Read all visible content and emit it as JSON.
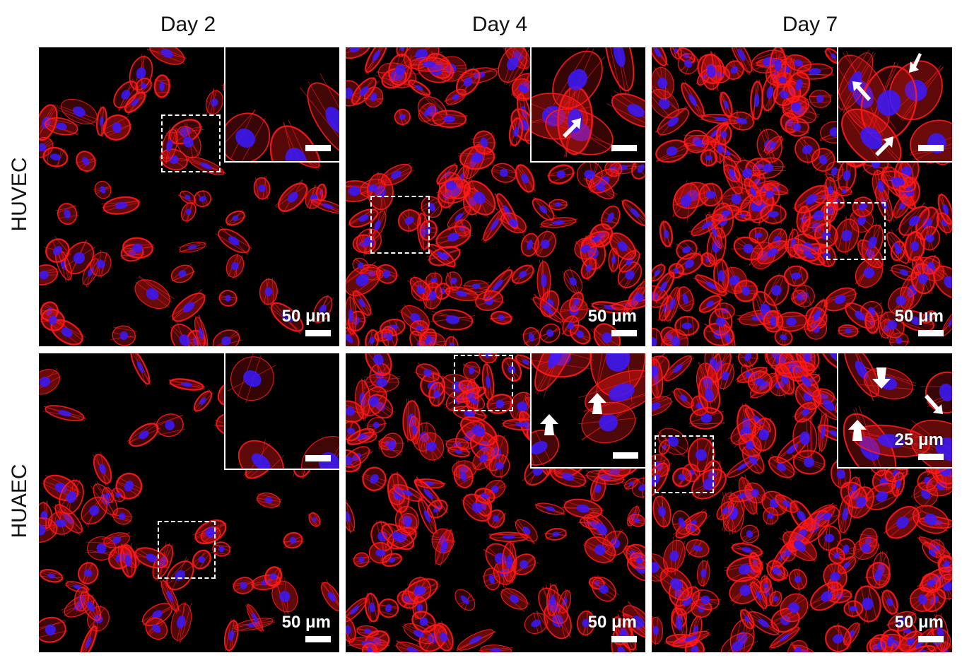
{
  "columns": [
    {
      "label": "Day 2"
    },
    {
      "label": "Day 4"
    },
    {
      "label": "Day 7"
    }
  ],
  "rows": [
    {
      "label": "HUVEC"
    },
    {
      "label": "HUAEC"
    }
  ],
  "scale_bars": {
    "main": "50 μm",
    "inset": "25 μm"
  },
  "colors": {
    "actin": "#ff1a1a",
    "nuclei": "#3a1aff",
    "background": "#000000",
    "annotation": "#ffffff"
  },
  "panels": [
    {
      "row": "HUVEC",
      "column": "Day 2",
      "inset_arrows": 0,
      "density": 0.35
    },
    {
      "row": "HUVEC",
      "column": "Day 4",
      "inset_arrows": 1,
      "density": 0.75
    },
    {
      "row": "HUVEC",
      "column": "Day 7",
      "inset_arrows": 3,
      "density": 1.0
    },
    {
      "row": "HUAEC",
      "column": "Day 2",
      "inset_arrows": 0,
      "density": 0.35
    },
    {
      "row": "HUAEC",
      "column": "Day 4",
      "inset_arrows": 2,
      "density": 0.8
    },
    {
      "row": "HUAEC",
      "column": "Day 7",
      "inset_arrows": 3,
      "density": 1.0
    }
  ]
}
